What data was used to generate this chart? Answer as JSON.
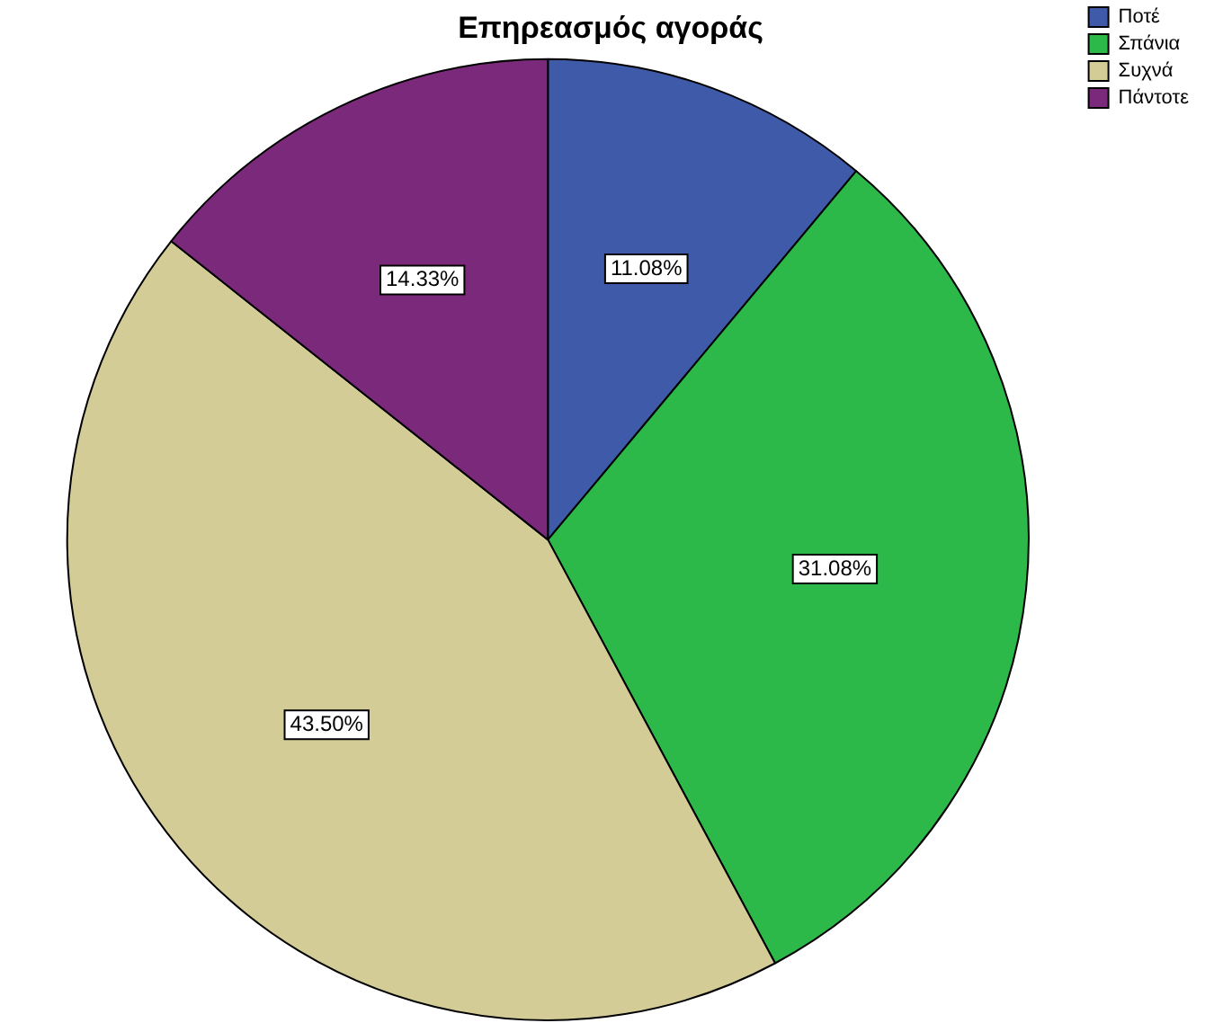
{
  "chart_data": {
    "type": "pie",
    "title": "Επηρεασμός αγοράς",
    "categories": [
      "Ποτέ",
      "Σπάνια",
      "Συχνά",
      "Πάντοτε"
    ],
    "values": [
      11.08,
      31.08,
      43.5,
      14.33
    ],
    "colors": [
      "#3f5aa8",
      "#2db84a",
      "#d4cc96",
      "#7b2a7b"
    ],
    "value_labels": [
      "11.08%",
      "31.08%",
      "43.50%",
      "14.33%"
    ],
    "legend": "top right"
  }
}
